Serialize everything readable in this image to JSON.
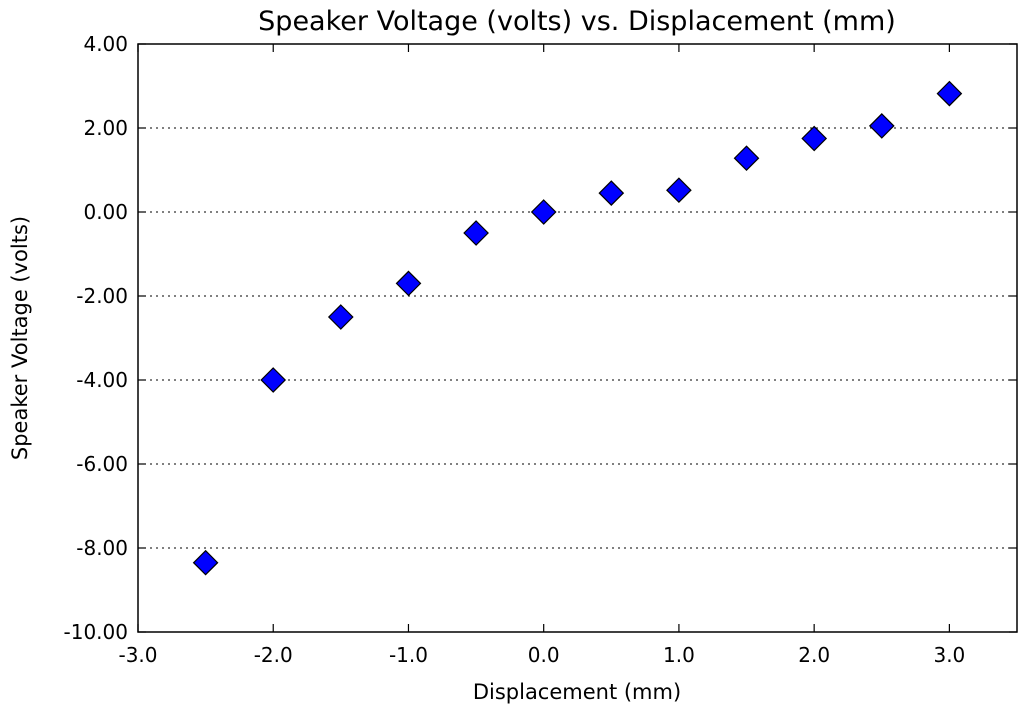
{
  "chart_data": {
    "type": "scatter",
    "title": "Speaker Voltage (volts) vs. Displacement (mm)",
    "xlabel": "Displacement (mm)",
    "ylabel": "Speaker Voltage (volts)",
    "xlim": [
      -3.0,
      3.5
    ],
    "ylim": [
      -10.0,
      4.0
    ],
    "x_ticks": [
      -3.0,
      -2.0,
      -1.0,
      0.0,
      1.0,
      2.0,
      3.0
    ],
    "x_tick_labels": [
      "-3.0",
      "-2.0",
      "-1.0",
      "0.0",
      "1.0",
      "2.0",
      "3.0"
    ],
    "y_ticks": [
      4.0,
      2.0,
      0.0,
      -2.0,
      -4.0,
      -6.0,
      -8.0,
      -10.0
    ],
    "y_tick_labels": [
      "4.00",
      "2.00",
      "0.00",
      "-2.00",
      "-4.00",
      "-6.00",
      "-8.00",
      "-10.00"
    ],
    "grid": "horizontal-dotted",
    "marker": "diamond",
    "marker_color": "#0000ff",
    "series": [
      {
        "x": [
          -2.5,
          -2.0,
          -1.5,
          -1.0,
          -0.5,
          0.0,
          0.5,
          1.0,
          1.5,
          2.0,
          2.5,
          3.0
        ],
        "y": [
          -8.35,
          -4.0,
          -2.5,
          -1.7,
          -0.5,
          0.0,
          0.45,
          0.52,
          1.28,
          1.75,
          2.05,
          2.82
        ]
      }
    ]
  }
}
